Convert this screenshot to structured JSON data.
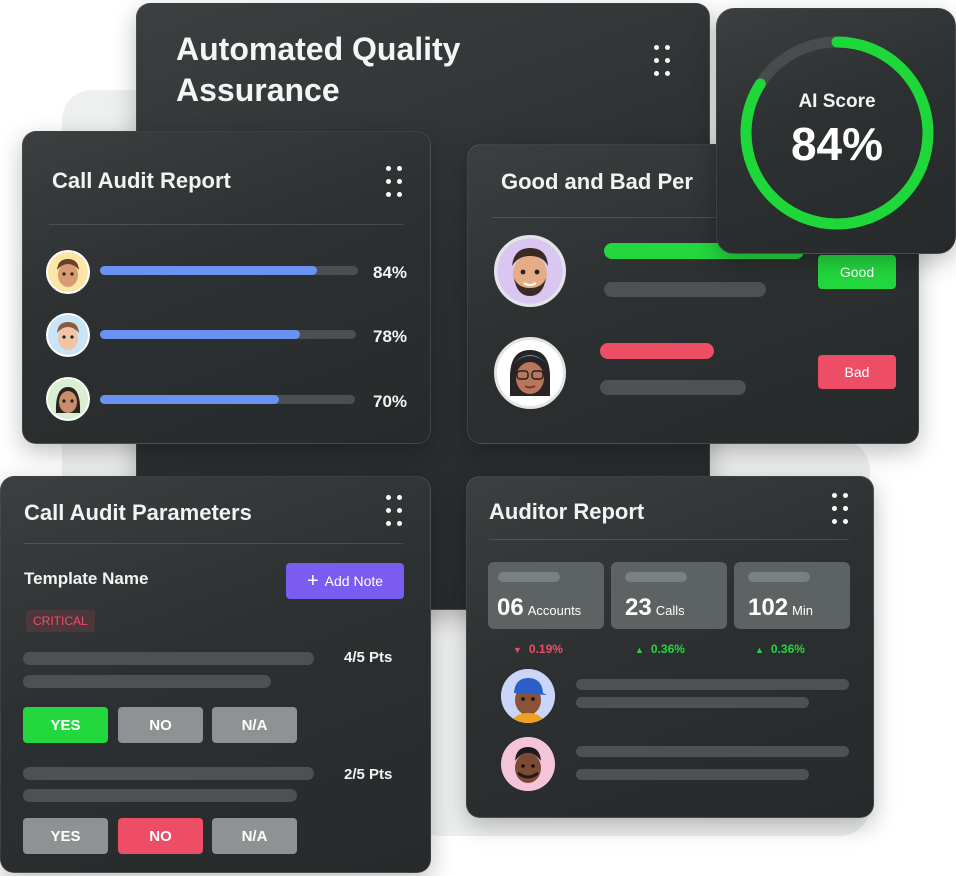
{
  "main_card": {
    "title_line1": "Automated Quality",
    "title_line2": "Assurance"
  },
  "ai_score": {
    "label": "AI Score",
    "value_text": "84%",
    "value": 84,
    "ring_color": "#1ed83a"
  },
  "call_audit_report": {
    "title": "Call Audit Report",
    "rows": [
      {
        "percent_text": "84%",
        "percent": 84
      },
      {
        "percent_text": "78%",
        "percent": 78
      },
      {
        "percent_text": "70%",
        "percent": 70
      }
    ],
    "bar_color": "#6a92f0"
  },
  "good_bad": {
    "title": "Good and Bad Per",
    "good_label": "Good",
    "bad_label": "Bad",
    "good_color": "#23d83f",
    "bad_color": "#ee4d66"
  },
  "call_audit_parameters": {
    "title": "Call Audit Parameters",
    "template_label": "Template Name",
    "add_note_label": "Add Note",
    "critical_label": "CRITICAL",
    "q1": {
      "points": "4/5 Pts",
      "yes": "YES",
      "no": "NO",
      "na": "N/A",
      "selected": "yes"
    },
    "q2": {
      "points": "2/5 Pts",
      "yes": "YES",
      "no": "NO",
      "na": "N/A",
      "selected": "no"
    }
  },
  "auditor_report": {
    "title": "Auditor Report",
    "stats": [
      {
        "value": "06",
        "unit": "Accounts",
        "trend": "0.19%",
        "direction": "down"
      },
      {
        "value": "23",
        "unit": "Calls",
        "trend": "0.36%",
        "direction": "up"
      },
      {
        "value": "102",
        "unit": "Min",
        "trend": "0.36%",
        "direction": "up"
      }
    ]
  },
  "icons": [
    "more-vertical-icon",
    "plus-icon",
    "caret-down-icon",
    "caret-up-icon"
  ]
}
